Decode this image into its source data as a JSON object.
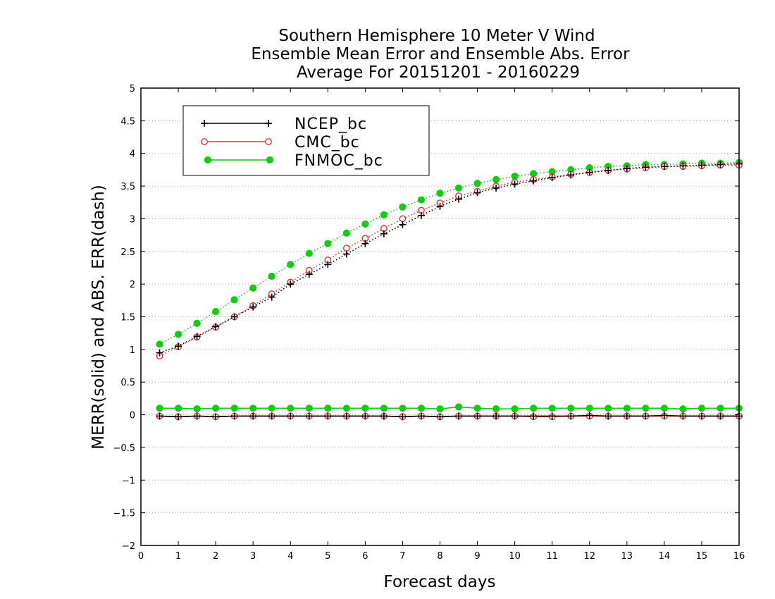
{
  "chart_data": {
    "type": "line",
    "title_lines": [
      "Southern Hemisphere 10 Meter V Wind",
      "Ensemble Mean Error and Ensemble Abs. Error",
      "Average For 20151201 - 20160229"
    ],
    "xlabel": "Forecast days",
    "ylabel": "MERR(solid) and ABS. ERR(dash)",
    "xlim": [
      0,
      16
    ],
    "ylim": [
      -2,
      5
    ],
    "x_ticks": [
      "0",
      "1",
      "2",
      "3",
      "4",
      "5",
      "6",
      "7",
      "8",
      "9",
      "10",
      "11",
      "12",
      "13",
      "14",
      "15",
      "16"
    ],
    "y_ticks": [
      "5",
      "4.5",
      "4",
      "3.5",
      "3",
      "2.5",
      "2",
      "1.5",
      "1",
      "0.5",
      "0",
      "−0.5",
      "−1",
      "−1.5",
      "−2"
    ],
    "y_tick_values": [
      5,
      4.5,
      4,
      3.5,
      3,
      2.5,
      2,
      1.5,
      1,
      0.5,
      0,
      -0.5,
      -1,
      -1.5,
      -2
    ],
    "grid": "horizontal-dotted",
    "legend_position": "top-left",
    "x": [
      0.5,
      1,
      1.5,
      2,
      2.5,
      3,
      3.5,
      4,
      4.5,
      5,
      5.5,
      6,
      6.5,
      7,
      7.5,
      8,
      8.5,
      9,
      9.5,
      10,
      10.5,
      11,
      11.5,
      12,
      12.5,
      13,
      13.5,
      14,
      14.5,
      15,
      15.5,
      16
    ],
    "series": [
      {
        "name": "NCEP_bc",
        "color": "#000000",
        "marker": "plus",
        "mean_error": [
          -0.02,
          -0.03,
          -0.02,
          -0.03,
          -0.02,
          -0.02,
          -0.02,
          -0.02,
          -0.02,
          -0.02,
          -0.02,
          -0.02,
          -0.02,
          -0.03,
          -0.02,
          -0.03,
          -0.02,
          -0.02,
          -0.02,
          -0.02,
          -0.02,
          -0.02,
          -0.02,
          -0.01,
          -0.02,
          -0.02,
          -0.02,
          -0.01,
          -0.02,
          -0.02,
          -0.02,
          -0.02
        ],
        "abs_error": [
          0.95,
          1.05,
          1.2,
          1.35,
          1.5,
          1.65,
          1.8,
          2.0,
          2.15,
          2.3,
          2.46,
          2.62,
          2.77,
          2.91,
          3.05,
          3.19,
          3.3,
          3.4,
          3.47,
          3.53,
          3.58,
          3.63,
          3.67,
          3.71,
          3.74,
          3.77,
          3.79,
          3.8,
          3.81,
          3.82,
          3.83,
          3.84
        ]
      },
      {
        "name": "CMC_bc",
        "color": "#e83030",
        "marker": "open-circle",
        "mean_error": [
          -0.02,
          -0.03,
          -0.02,
          -0.03,
          -0.02,
          -0.02,
          -0.02,
          -0.02,
          -0.02,
          -0.02,
          -0.02,
          -0.02,
          -0.02,
          -0.03,
          -0.02,
          -0.03,
          -0.02,
          -0.02,
          -0.02,
          -0.02,
          -0.03,
          -0.03,
          -0.02,
          -0.02,
          -0.02,
          -0.02,
          -0.02,
          -0.02,
          -0.02,
          -0.02,
          -0.02,
          -0.02
        ],
        "abs_error": [
          0.9,
          1.04,
          1.19,
          1.34,
          1.5,
          1.67,
          1.85,
          2.03,
          2.21,
          2.37,
          2.55,
          2.7,
          2.85,
          3.0,
          3.13,
          3.24,
          3.35,
          3.42,
          3.5,
          3.56,
          3.6,
          3.64,
          3.68,
          3.71,
          3.74,
          3.76,
          3.78,
          3.8,
          3.8,
          3.81,
          3.82,
          3.82
        ]
      },
      {
        "name": "FNMOC_bc",
        "color": "#11cc11",
        "marker": "filled-circle",
        "mean_error": [
          0.1,
          0.1,
          0.09,
          0.1,
          0.1,
          0.1,
          0.1,
          0.1,
          0.1,
          0.1,
          0.1,
          0.1,
          0.1,
          0.1,
          0.1,
          0.09,
          0.12,
          0.1,
          0.09,
          0.09,
          0.1,
          0.1,
          0.1,
          0.1,
          0.1,
          0.1,
          0.1,
          0.1,
          0.09,
          0.1,
          0.1,
          0.1
        ],
        "abs_error": [
          1.08,
          1.23,
          1.4,
          1.58,
          1.76,
          1.94,
          2.12,
          2.3,
          2.47,
          2.62,
          2.78,
          2.92,
          3.06,
          3.18,
          3.29,
          3.39,
          3.47,
          3.54,
          3.6,
          3.65,
          3.69,
          3.72,
          3.75,
          3.78,
          3.8,
          3.81,
          3.83,
          3.83,
          3.84,
          3.85,
          3.85,
          3.86
        ]
      }
    ]
  }
}
